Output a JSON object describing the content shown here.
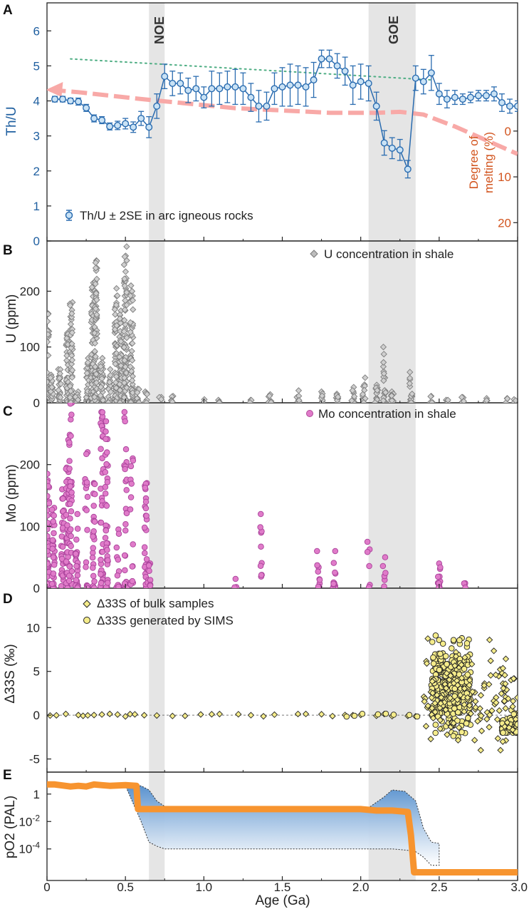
{
  "x_axis": {
    "label": "Age (Ga)",
    "ticks": [
      "0",
      "0.5",
      "1.0",
      "1.5",
      "2.0",
      "2.5",
      "3.0"
    ],
    "range": [
      0,
      3.0
    ]
  },
  "events": [
    {
      "name": "NOE",
      "range": [
        0.65,
        0.75
      ]
    },
    {
      "name": "GOE",
      "range": [
        2.05,
        2.35
      ]
    }
  ],
  "colors": {
    "thu_line": "#2a6cb0",
    "thu_fill": "#c9e2f5",
    "thu_label": "#1f5fa0",
    "u_marker": "#8f8f8f",
    "mo_marker": "#e07bc9",
    "s_marker": "#f5ec8a",
    "melting_arrow": "#f8a9a7",
    "melting_text": "#d2541e",
    "po2_line": "#f7942f",
    "po2_band": "#5b93cf",
    "event_band": "#e5e5e5"
  },
  "panels": {
    "A": {
      "letter": "A",
      "ylabel": "Th/U",
      "yticks": [
        "0",
        "1",
        "2",
        "3",
        "4",
        "5",
        "6"
      ],
      "legend": "Th/U ± 2SE in arc igneous rocks",
      "right_axis_title_1": "Degree of",
      "right_axis_title_2": "melting (%)",
      "right_ticks": [
        "0",
        "10",
        "20"
      ]
    },
    "B": {
      "letter": "B",
      "ylabel": "U (ppm)",
      "yticks": [
        "0",
        "100",
        "200"
      ],
      "legend": "U concentration in shale"
    },
    "C": {
      "letter": "C",
      "ylabel": "Mo (ppm)",
      "yticks": [
        "0",
        "100",
        "200"
      ],
      "legend": "Mo concentration in shale"
    },
    "D": {
      "letter": "D",
      "ylabel": "Δ33S (‰)",
      "yticks": [
        "-5",
        "0",
        "5",
        "10"
      ],
      "legend_bulk": "Δ33S of bulk samples",
      "legend_sims": "Δ33S generated by SIMS"
    },
    "E": {
      "letter": "E",
      "ylabel": "pO2 (PAL)",
      "yticks": [
        "1",
        "10-2",
        "10-4"
      ]
    }
  },
  "chart_data": [
    {
      "panel": "A",
      "type": "line",
      "ylabel": "Th/U",
      "ylim": [
        0,
        6.8
      ],
      "series": [
        {
          "name": "Th/U ± 2SE in arc igneous rocks",
          "x": [
            0.05,
            0.1,
            0.15,
            0.2,
            0.25,
            0.3,
            0.35,
            0.4,
            0.45,
            0.5,
            0.55,
            0.6,
            0.65,
            0.7,
            0.75,
            0.8,
            0.85,
            0.9,
            0.95,
            1.0,
            1.05,
            1.1,
            1.15,
            1.2,
            1.25,
            1.3,
            1.35,
            1.4,
            1.45,
            1.5,
            1.55,
            1.6,
            1.65,
            1.7,
            1.75,
            1.8,
            1.85,
            1.9,
            1.95,
            2.0,
            2.05,
            2.1,
            2.15,
            2.2,
            2.25,
            2.3,
            2.35,
            2.4,
            2.45,
            2.5,
            2.55,
            2.6,
            2.65,
            2.7,
            2.75,
            2.8,
            2.85,
            2.9,
            2.95,
            3.0
          ],
          "y": [
            4.05,
            4.05,
            4.0,
            3.98,
            3.8,
            3.5,
            3.45,
            3.27,
            3.3,
            3.35,
            3.25,
            3.5,
            3.25,
            3.85,
            4.7,
            4.5,
            4.5,
            4.3,
            4.35,
            4.1,
            4.35,
            4.35,
            4.4,
            4.4,
            4.35,
            4.1,
            3.85,
            3.85,
            4.35,
            4.4,
            4.45,
            4.45,
            4.4,
            4.6,
            5.2,
            5.2,
            5.0,
            4.85,
            4.45,
            4.55,
            4.5,
            3.85,
            2.8,
            2.65,
            2.6,
            2.05,
            4.65,
            4.55,
            4.8,
            4.2,
            4.05,
            4.1,
            4.05,
            4.1,
            4.15,
            4.15,
            4.2,
            3.95,
            3.85,
            3.85
          ],
          "err": [
            0.08,
            0.08,
            0.08,
            0.1,
            0.1,
            0.1,
            0.1,
            0.1,
            0.12,
            0.15,
            0.15,
            0.2,
            0.3,
            0.35,
            0.35,
            0.35,
            0.3,
            0.35,
            0.35,
            0.3,
            0.5,
            0.45,
            0.45,
            0.5,
            0.45,
            0.4,
            0.45,
            0.4,
            0.45,
            0.55,
            0.6,
            0.55,
            0.55,
            0.5,
            0.25,
            0.25,
            0.35,
            0.4,
            0.55,
            0.5,
            0.5,
            0.4,
            0.35,
            0.3,
            0.3,
            0.25,
            0.35,
            0.35,
            0.5,
            0.3,
            0.25,
            0.2,
            0.15,
            0.15,
            0.15,
            0.15,
            0.2,
            0.25,
            0.2,
            0.15
          ]
        },
        {
          "name": "trend",
          "x": [
            0.15,
            2.45
          ],
          "y": [
            5.2,
            4.6
          ]
        }
      ],
      "melting_curve": {
        "x": [
          0.02,
          0.2,
          0.6,
          1.2,
          1.8,
          2.1,
          2.25,
          2.4,
          2.6,
          2.8,
          3.0
        ],
        "melting_pct": [
          -9,
          -8.5,
          -7,
          -5,
          -4,
          -4,
          -4.2,
          -3.6,
          -1,
          2,
          5
        ]
      },
      "melting_ylim": [
        -28,
        24
      ]
    },
    {
      "panel": "B",
      "type": "scatter",
      "ylabel": "U (ppm)",
      "ylim": [
        0,
        290
      ],
      "series": [
        {
          "name": "U concentration in shale",
          "marker": "diamond",
          "clusters": [
            {
              "x": 0.005,
              "ymax": 160,
              "n": 32
            },
            {
              "x": 0.03,
              "ymax": 50,
              "n": 20
            },
            {
              "x": 0.08,
              "ymax": 60,
              "n": 24
            },
            {
              "x": 0.13,
              "ymax": 125,
              "n": 42
            },
            {
              "x": 0.155,
              "ymax": 180,
              "n": 42
            },
            {
              "x": 0.19,
              "ymax": 20,
              "n": 12
            },
            {
              "x": 0.26,
              "ymax": 80,
              "n": 28
            },
            {
              "x": 0.29,
              "ymax": 215,
              "n": 66
            },
            {
              "x": 0.31,
              "ymax": 255,
              "n": 72
            },
            {
              "x": 0.35,
              "ymax": 80,
              "n": 36
            },
            {
              "x": 0.4,
              "ymax": 60,
              "n": 22
            },
            {
              "x": 0.44,
              "ymax": 205,
              "n": 62
            },
            {
              "x": 0.47,
              "ymax": 165,
              "n": 52
            },
            {
              "x": 0.5,
              "ymax": 280,
              "n": 72
            },
            {
              "x": 0.54,
              "ymax": 210,
              "n": 52
            },
            {
              "x": 0.58,
              "ymax": 25,
              "n": 10
            },
            {
              "x": 0.63,
              "ymax": 20,
              "n": 8
            },
            {
              "x": 0.72,
              "ymax": 10,
              "n": 4
            },
            {
              "x": 0.8,
              "ymax": 12,
              "n": 5
            },
            {
              "x": 1.0,
              "ymax": 6,
              "n": 3
            },
            {
              "x": 1.1,
              "ymax": 5,
              "n": 3
            },
            {
              "x": 1.3,
              "ymax": 5,
              "n": 3
            },
            {
              "x": 1.42,
              "ymax": 15,
              "n": 6
            },
            {
              "x": 1.6,
              "ymax": 22,
              "n": 8
            },
            {
              "x": 1.75,
              "ymax": 20,
              "n": 8
            },
            {
              "x": 1.85,
              "ymax": 16,
              "n": 8
            },
            {
              "x": 1.95,
              "ymax": 28,
              "n": 10
            },
            {
              "x": 2.02,
              "ymax": 45,
              "n": 12
            },
            {
              "x": 2.1,
              "ymax": 32,
              "n": 14
            },
            {
              "x": 2.15,
              "ymax": 100,
              "n": 22
            },
            {
              "x": 2.2,
              "ymax": 20,
              "n": 10
            },
            {
              "x": 2.32,
              "ymax": 55,
              "n": 16
            },
            {
              "x": 2.45,
              "ymax": 12,
              "n": 6
            },
            {
              "x": 2.55,
              "ymax": 5,
              "n": 4
            },
            {
              "x": 2.65,
              "ymax": 10,
              "n": 6
            },
            {
              "x": 2.8,
              "ymax": 8,
              "n": 4
            },
            {
              "x": 2.93,
              "ymax": 8,
              "n": 4
            },
            {
              "x": 2.98,
              "ymax": 6,
              "n": 3
            }
          ]
        }
      ]
    },
    {
      "panel": "C",
      "type": "scatter",
      "ylabel": "Mo (ppm)",
      "ylim": [
        0,
        300
      ],
      "series": [
        {
          "name": "Mo concentration in shale",
          "marker": "circle",
          "clusters": [
            {
              "x": 0.005,
              "ymax": 185,
              "n": 40
            },
            {
              "x": 0.04,
              "ymax": 130,
              "n": 34
            },
            {
              "x": 0.1,
              "ymax": 160,
              "n": 28
            },
            {
              "x": 0.13,
              "ymax": 240,
              "n": 40
            },
            {
              "x": 0.15,
              "ymax": 300,
              "n": 36
            },
            {
              "x": 0.19,
              "ymax": 120,
              "n": 26
            },
            {
              "x": 0.25,
              "ymax": 220,
              "n": 16
            },
            {
              "x": 0.3,
              "ymax": 170,
              "n": 24
            },
            {
              "x": 0.35,
              "ymax": 285,
              "n": 38
            },
            {
              "x": 0.38,
              "ymax": 270,
              "n": 34
            },
            {
              "x": 0.45,
              "ymax": 95,
              "n": 14
            },
            {
              "x": 0.5,
              "ymax": 285,
              "n": 24
            },
            {
              "x": 0.54,
              "ymax": 210,
              "n": 14
            },
            {
              "x": 0.63,
              "ymax": 170,
              "n": 26
            },
            {
              "x": 0.65,
              "ymax": 40,
              "n": 10
            },
            {
              "x": 1.2,
              "ymax": 15,
              "n": 3
            },
            {
              "x": 1.36,
              "ymax": 120,
              "n": 10
            },
            {
              "x": 1.73,
              "ymax": 60,
              "n": 10
            },
            {
              "x": 1.83,
              "ymax": 60,
              "n": 12
            },
            {
              "x": 2.05,
              "ymax": 75,
              "n": 6
            },
            {
              "x": 2.15,
              "ymax": 50,
              "n": 6
            },
            {
              "x": 2.5,
              "ymax": 40,
              "n": 12
            },
            {
              "x": 2.66,
              "ymax": 8,
              "n": 3
            }
          ]
        }
      ]
    },
    {
      "panel": "D",
      "type": "scatter",
      "ylabel": "Δ33S (‰)",
      "ylim": [
        -6.5,
        14.5
      ],
      "series": [
        {
          "name": "Δ33S of bulk samples",
          "marker": "diamond",
          "near_zero_x": [
            0.02,
            0.06,
            0.12,
            0.2,
            0.23,
            0.26,
            0.3,
            0.35,
            0.4,
            0.45,
            0.5,
            0.53,
            0.56,
            0.62,
            0.7,
            0.8,
            0.88,
            0.98,
            1.05,
            1.1,
            1.22,
            1.3,
            1.38,
            1.45,
            1.6,
            1.65,
            1.75,
            1.82,
            1.9,
            1.95,
            2.0,
            2.1,
            2.15,
            2.2,
            2.3,
            2.35
          ],
          "late_scatter": {
            "x_range": [
              2.4,
              3.0
            ],
            "y_range": [
              -4.0,
              11.0
            ],
            "n": 140
          }
        },
        {
          "name": "Δ33S generated by SIMS",
          "marker": "circle",
          "late_scatter": {
            "x_range": [
              2.45,
              2.7
            ],
            "y_range": [
              -2.5,
              12.0
            ],
            "n": 320
          },
          "tail_scatter": {
            "x_range": [
              2.9,
              3.0
            ],
            "y_range": [
              -2.0,
              2.5
            ],
            "n": 60
          }
        }
      ]
    },
    {
      "panel": "E",
      "type": "area",
      "ylabel": "pO2 (PAL)",
      "ylim_log10": [
        -6.3,
        1.6
      ],
      "series": [
        {
          "name": "pO2 estimate",
          "x": [
            0,
            0.05,
            0.15,
            0.2,
            0.25,
            0.3,
            0.35,
            0.4,
            0.5,
            0.57,
            0.58,
            0.6,
            1.0,
            1.5,
            2.0,
            2.1,
            2.2,
            2.3,
            2.32,
            2.34,
            2.36,
            3.0
          ],
          "log10_y": [
            0.7,
            0.7,
            0.55,
            0.6,
            0.55,
            0.7,
            0.65,
            0.6,
            0.65,
            0.6,
            -1.1,
            -1.1,
            -1.1,
            -1.1,
            -1.1,
            -1.2,
            -1.2,
            -1.3,
            -3.0,
            -5.7,
            -5.7,
            -5.7
          ]
        }
      ],
      "range_band": {
        "upper": {
          "x": [
            0.5,
            0.6,
            0.65,
            0.7,
            0.75,
            0.8,
            1.5,
            2.05,
            2.15,
            2.2,
            2.28,
            2.35,
            2.4,
            2.45,
            2.5
          ],
          "log10_y": [
            0.6,
            0.6,
            0.3,
            -0.5,
            -0.9,
            -1.0,
            -1.0,
            -1.0,
            -0.2,
            0.3,
            0.2,
            -0.5,
            -2.5,
            -3.5,
            -3.6
          ]
        },
        "lower": {
          "x": [
            2.5,
            2.45,
            2.4,
            2.35,
            2.3,
            2.2,
            2.1,
            2.05,
            1.5,
            0.8,
            0.75,
            0.7,
            0.65,
            0.6,
            0.5
          ],
          "log10_y": [
            -5.2,
            -5.2,
            -4.6,
            -4.2,
            -4.1,
            -4.0,
            -4.0,
            -4.0,
            -4.0,
            -4.0,
            -4.0,
            -3.8,
            -3.5,
            -2.0,
            0.6
          ]
        }
      }
    }
  ]
}
